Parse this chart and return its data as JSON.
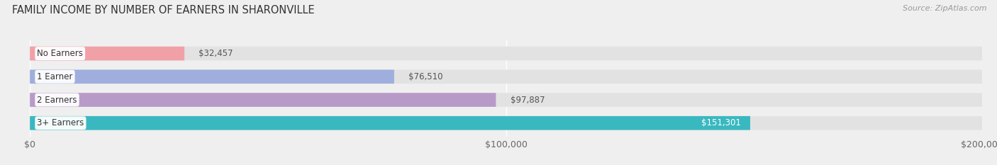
{
  "title": "FAMILY INCOME BY NUMBER OF EARNERS IN SHARONVILLE",
  "source": "Source: ZipAtlas.com",
  "categories": [
    "No Earners",
    "1 Earner",
    "2 Earners",
    "3+ Earners"
  ],
  "values": [
    32457,
    76510,
    97887,
    151301
  ],
  "bar_colors": [
    "#f2a0a8",
    "#9faedd",
    "#b89ac8",
    "#3ab8c0"
  ],
  "xlim": [
    0,
    200000
  ],
  "background_color": "#efefef",
  "bar_background_color": "#e2e2e2",
  "title_fontsize": 10.5,
  "source_fontsize": 8,
  "tick_label_fontsize": 9,
  "bar_label_fontsize": 8.5,
  "category_fontsize": 8.5
}
